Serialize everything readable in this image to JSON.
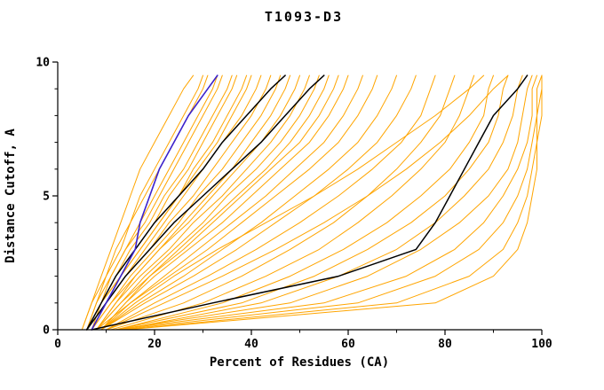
{
  "page": {
    "background": "#ffffff"
  },
  "chart_data": {
    "type": "line",
    "title": "T1093-D3",
    "xlabel": "Percent of Residues (CA)",
    "ylabel": "Distance Cutoff, A",
    "xlim": [
      0,
      100
    ],
    "ylim": [
      0,
      10
    ],
    "x_major_ticks": [
      0,
      20,
      40,
      60,
      80,
      100
    ],
    "x_minor_ticks": [
      10,
      30,
      50,
      70,
      90
    ],
    "y_major_ticks": [
      0,
      5,
      10
    ],
    "y_minor_ticks": [
      1,
      2,
      3,
      4,
      6,
      7,
      8,
      9
    ],
    "grid": false,
    "legend": "none",
    "colors": {
      "predictions": "#FFA500",
      "reference_black": "#000000",
      "reference_blue": "#3B22CC",
      "axis": "#000000"
    },
    "y_grid": [
      0,
      1,
      2,
      3,
      4,
      5,
      6,
      7,
      8,
      9,
      9.5
    ],
    "series": {
      "orange_x": [
        [
          5,
          7,
          9,
          11,
          13,
          15,
          17,
          20,
          23,
          26,
          28
        ],
        [
          6,
          8,
          10,
          12,
          15,
          17,
          20,
          23,
          26,
          29,
          30
        ],
        [
          5,
          7,
          10,
          13,
          15,
          18,
          21,
          24,
          27,
          30,
          31
        ],
        [
          6,
          9,
          11,
          14,
          17,
          20,
          23,
          26,
          29,
          32,
          33
        ],
        [
          6,
          8,
          11,
          14,
          18,
          21,
          24,
          27,
          30,
          33,
          34
        ],
        [
          7,
          9,
          12,
          15,
          19,
          22,
          26,
          29,
          32,
          35,
          36
        ],
        [
          6,
          9,
          13,
          16,
          20,
          23,
          27,
          30,
          33,
          36,
          37
        ],
        [
          7,
          10,
          13,
          17,
          21,
          25,
          28,
          32,
          35,
          38,
          39
        ],
        [
          6,
          9,
          13,
          17,
          21,
          25,
          29,
          33,
          36,
          39,
          40
        ],
        [
          7,
          10,
          14,
          18,
          22,
          26,
          30,
          34,
          38,
          41,
          42
        ],
        [
          6,
          10,
          14,
          19,
          23,
          28,
          32,
          36,
          40,
          43,
          44
        ],
        [
          7,
          11,
          15,
          20,
          25,
          29,
          34,
          38,
          42,
          45,
          46
        ],
        [
          8,
          12,
          16,
          21,
          26,
          31,
          36,
          40,
          44,
          47,
          48
        ],
        [
          7,
          11,
          16,
          21,
          27,
          32,
          37,
          42,
          46,
          49,
          50
        ],
        [
          8,
          12,
          17,
          23,
          28,
          34,
          39,
          44,
          48,
          51,
          52
        ],
        [
          8,
          13,
          18,
          24,
          30,
          35,
          41,
          46,
          50,
          53,
          54
        ],
        [
          9,
          14,
          19,
          25,
          31,
          37,
          43,
          48,
          52,
          55,
          56
        ],
        [
          8,
          13,
          19,
          26,
          32,
          38,
          44,
          50,
          54,
          57,
          58
        ],
        [
          9,
          14,
          20,
          27,
          34,
          40,
          46,
          52,
          56,
          59,
          60
        ],
        [
          9,
          15,
          22,
          29,
          36,
          43,
          49,
          55,
          59,
          62,
          63
        ],
        [
          8,
          15,
          23,
          31,
          38,
          45,
          52,
          58,
          62,
          65,
          66
        ],
        [
          9,
          17,
          26,
          34,
          42,
          49,
          56,
          62,
          66,
          69,
          70
        ],
        [
          9,
          18,
          28,
          37,
          45,
          53,
          60,
          66,
          70,
          73,
          74
        ],
        [
          10,
          20,
          31,
          41,
          50,
          58,
          65,
          71,
          75,
          77,
          78
        ],
        [
          10,
          26,
          38,
          48,
          57,
          64,
          70,
          75,
          79,
          81,
          82
        ],
        [
          11,
          30,
          43,
          54,
          62,
          69,
          75,
          80,
          83,
          85,
          86
        ],
        [
          12,
          34,
          48,
          59,
          68,
          75,
          81,
          85,
          88,
          89,
          90
        ],
        [
          12,
          38,
          53,
          64,
          73,
          80,
          85,
          89,
          91,
          92,
          93
        ],
        [
          13,
          42,
          58,
          70,
          78,
          84,
          89,
          92,
          94,
          95,
          96
        ],
        [
          12,
          48,
          64,
          75,
          83,
          89,
          93,
          95,
          96,
          97,
          98
        ],
        [
          12,
          55,
          72,
          82,
          88,
          92,
          95,
          97,
          98,
          98,
          99
        ],
        [
          13,
          62,
          78,
          87,
          92,
          95,
          97,
          98,
          99,
          99,
          100
        ],
        [
          14,
          70,
          85,
          92,
          95,
          97,
          98,
          99,
          99,
          100,
          100
        ],
        [
          14,
          78,
          90,
          95,
          97,
          98,
          99,
          99,
          100,
          100,
          100
        ],
        [
          10,
          22,
          34,
          45,
          55,
          64,
          72,
          79,
          85,
          90,
          93
        ],
        [
          9,
          16,
          24,
          33,
          43,
          53,
          62,
          70,
          78,
          85,
          88
        ]
      ],
      "black_x": [
        [
          6,
          9,
          12,
          16,
          20,
          25,
          30,
          34,
          39,
          44,
          47
        ],
        [
          6,
          10,
          14,
          19,
          24,
          30,
          36,
          42,
          47,
          52,
          55
        ],
        [
          7,
          32,
          58,
          74,
          78,
          81,
          84,
          87,
          90,
          95,
          97
        ]
      ],
      "blue_x": [
        [
          7,
          10,
          13,
          16,
          17,
          19,
          21,
          24,
          27,
          31,
          33
        ]
      ]
    }
  }
}
